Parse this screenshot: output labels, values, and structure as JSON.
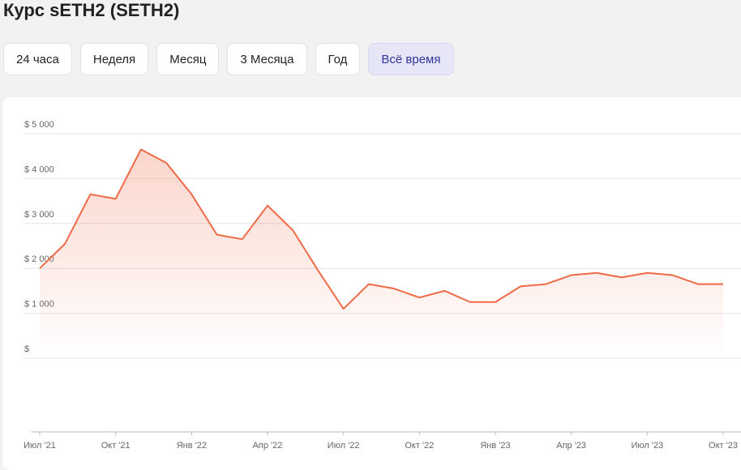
{
  "header": {
    "title": "Курс sETH2 (SETH2)"
  },
  "tabs": [
    "24 часа",
    "Неделя",
    "Месяц",
    "3 Месяца",
    "Год",
    "Всё время"
  ],
  "active_tab": 5,
  "chart_data": {
    "type": "line",
    "x": [
      "2021-07",
      "2021-08",
      "2021-09",
      "2021-10",
      "2021-11",
      "2021-12",
      "2022-01",
      "2022-02",
      "2022-03",
      "2022-04",
      "2022-05",
      "2022-06",
      "2022-07",
      "2022-08",
      "2022-09",
      "2022-10",
      "2022-11",
      "2022-12",
      "2023-01",
      "2023-02",
      "2023-03",
      "2023-04",
      "2023-05",
      "2023-06",
      "2023-07",
      "2023-08",
      "2023-09",
      "2023-10"
    ],
    "series": [
      {
        "name": "SETH2",
        "color": "#ef6a47",
        "values": [
          2000,
          2550,
          3650,
          3550,
          4650,
          4350,
          3650,
          2750,
          2650,
          3400,
          2850,
          1950,
          1100,
          1650,
          1550,
          1350,
          1500,
          1250,
          1250,
          1600,
          1650,
          1850,
          1900,
          1800,
          1900,
          1850,
          1650,
          1650
        ]
      }
    ],
    "xlim": [
      "2021-07",
      "2023-10"
    ],
    "xticks": [
      {
        "value": "2021-07",
        "label": "Июл '21"
      },
      {
        "value": "2021-10",
        "label": "Окт '21"
      },
      {
        "value": "2022-01",
        "label": "Янв '22"
      },
      {
        "value": "2022-04",
        "label": "Апр '22"
      },
      {
        "value": "2022-07",
        "label": "Июл '22"
      },
      {
        "value": "2022-10",
        "label": "Окт '22"
      },
      {
        "value": "2023-01",
        "label": "Янв '23"
      },
      {
        "value": "2023-04",
        "label": "Апр '23"
      },
      {
        "value": "2023-07",
        "label": "Июл '23"
      },
      {
        "value": "2023-10",
        "label": "Окт '23"
      }
    ],
    "ylim": [
      0,
      5000
    ],
    "yticks": [
      {
        "value": 5000,
        "label": "$ 5 000"
      },
      {
        "value": 4000,
        "label": "$ 4 000"
      },
      {
        "value": 3000,
        "label": "$ 3 000"
      },
      {
        "value": 2000,
        "label": "$ 2 000"
      },
      {
        "value": 1000,
        "label": "$ 1 000"
      },
      {
        "value": 0,
        "label": "$"
      }
    ],
    "grid": true
  }
}
